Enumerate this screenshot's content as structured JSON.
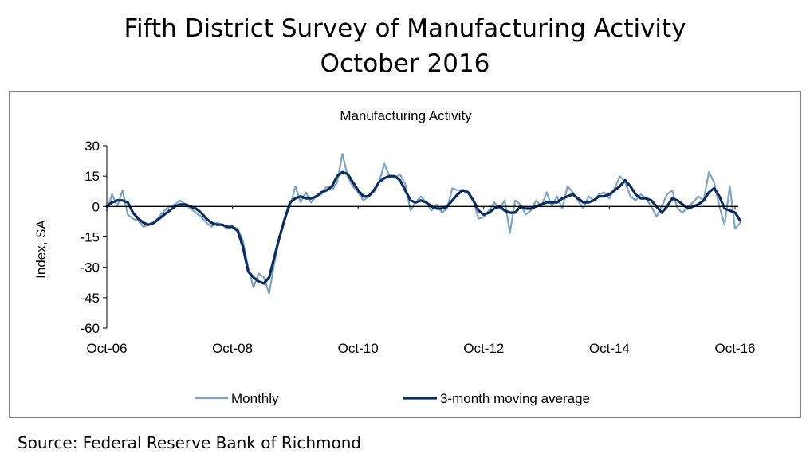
{
  "header": {
    "title_line1": "Fifth District Survey of Manufacturing Activity",
    "title_line2": "October 2016"
  },
  "footer": {
    "source": "Source: Federal Reserve Bank of Richmond"
  },
  "colors": {
    "monthly": "#7fa3bd",
    "moving_average": "#0d2c5e",
    "axis": "#000000",
    "frame": "#808080"
  },
  "chart_data": {
    "type": "line",
    "title": "Manufacturing Activity",
    "ylabel": "Index, SA",
    "xlabel": "",
    "ylim": [
      -60,
      30
    ],
    "yticks": [
      30,
      15,
      0,
      -15,
      -30,
      -45,
      -60
    ],
    "ytick_labels": [
      "30",
      "15",
      "0",
      "-15",
      "-30",
      "-45",
      "-60"
    ],
    "x_start": "Oct-06",
    "x_count": 121,
    "xticks": [
      {
        "index": 0,
        "label": "Oct-06"
      },
      {
        "index": 24,
        "label": "Oct-08"
      },
      {
        "index": 48,
        "label": "Oct-10"
      },
      {
        "index": 72,
        "label": "Oct-12"
      },
      {
        "index": 96,
        "label": "Oct-14"
      },
      {
        "index": 120,
        "label": "Oct-16"
      }
    ],
    "legend": {
      "position": "bottom",
      "entries": [
        "Monthly",
        "3-month moving average"
      ]
    },
    "series": [
      {
        "name": "Monthly",
        "values": [
          -2,
          6,
          0,
          8,
          -4,
          -6,
          -7,
          -10,
          -9,
          -8,
          -5,
          -2,
          0,
          1,
          3,
          1,
          -1,
          -3,
          -5,
          -8,
          -10,
          -8,
          -9,
          -11,
          -10,
          -11,
          -17,
          -30,
          -40,
          -33,
          -35,
          -43,
          -28,
          -15,
          -5,
          0,
          10,
          2,
          7,
          2,
          5,
          6,
          10,
          8,
          12,
          26,
          15,
          10,
          7,
          3,
          5,
          7,
          12,
          21,
          15,
          14,
          16,
          11,
          -2,
          2,
          5,
          2,
          -2,
          1,
          -3,
          -1,
          9,
          8,
          8,
          7,
          3,
          -6,
          -5,
          -2,
          2,
          -1,
          3,
          -13,
          3,
          1,
          -4,
          -2,
          3,
          0,
          7,
          0,
          5,
          -1,
          10,
          7,
          3,
          -1,
          5,
          3,
          6,
          7,
          4,
          9,
          15,
          12,
          5,
          3,
          6,
          4,
          0,
          -5,
          0,
          6,
          8,
          -1,
          -3,
          0,
          2,
          5,
          3,
          17,
          12,
          0,
          -9,
          10,
          -11,
          -8
        ]
      },
      {
        "name": "3-month moving average",
        "values": [
          0,
          2,
          3,
          3,
          2,
          -3,
          -6,
          -8,
          -9,
          -8,
          -6,
          -4,
          -2,
          0,
          1,
          1,
          0,
          -1,
          -3,
          -6,
          -8,
          -9,
          -9,
          -10,
          -10,
          -12,
          -20,
          -32,
          -35,
          -37,
          -38,
          -35,
          -25,
          -15,
          -6,
          2,
          4,
          5,
          4,
          4,
          5,
          7,
          8,
          10,
          15,
          17,
          16,
          12,
          8,
          5,
          5,
          8,
          12,
          14,
          15,
          15,
          13,
          8,
          3,
          2,
          3,
          2,
          0,
          -1,
          -1,
          0,
          3,
          6,
          8,
          7,
          3,
          -2,
          -4,
          -3,
          -1,
          0,
          -2,
          -3,
          -3,
          0,
          -1,
          -1,
          0,
          1,
          2,
          2,
          2,
          4,
          5,
          6,
          4,
          2,
          2,
          3,
          5,
          5,
          6,
          8,
          10,
          13,
          10,
          6,
          4,
          4,
          3,
          0,
          -3,
          0,
          4,
          3,
          1,
          -1,
          0,
          1,
          3,
          7,
          9,
          5,
          -1,
          -2,
          -3,
          -7
        ]
      }
    ]
  }
}
